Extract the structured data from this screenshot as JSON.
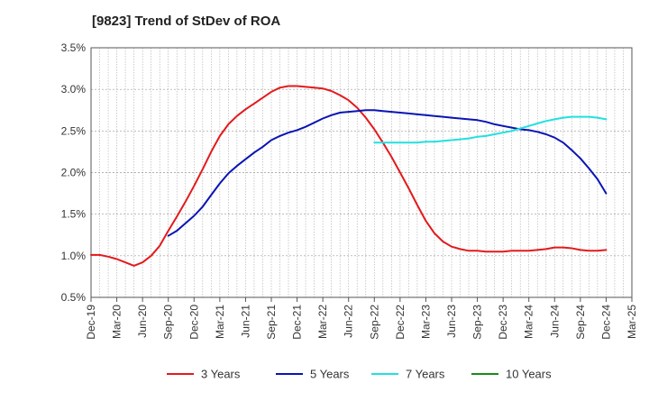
{
  "chart_data": {
    "type": "line",
    "title": "[9823]  Trend of StDev of ROA",
    "xlabel": "",
    "ylabel": "",
    "x_ticks": [
      "Dec-19",
      "Mar-20",
      "Jun-20",
      "Sep-20",
      "Dec-20",
      "Mar-21",
      "Jun-21",
      "Sep-21",
      "Dec-21",
      "Mar-22",
      "Jun-22",
      "Sep-22",
      "Dec-22",
      "Mar-23",
      "Jun-23",
      "Sep-23",
      "Dec-23",
      "Mar-24",
      "Jun-24",
      "Sep-24",
      "Dec-24",
      "Mar-25"
    ],
    "y_ticks": [
      "0.5%",
      "1.0%",
      "1.5%",
      "2.0%",
      "2.5%",
      "3.0%",
      "3.5%"
    ],
    "ylim": [
      0.5,
      3.5
    ],
    "grid": true,
    "legend_position": "bottom",
    "series": [
      {
        "name": "3 Years",
        "color": "#e31a1c",
        "points": [
          [
            "Dec-19",
            1.01
          ],
          [
            "Jan-20",
            1.01
          ],
          [
            "Feb-20",
            0.99
          ],
          [
            "Mar-20",
            0.96
          ],
          [
            "Apr-20",
            0.92
          ],
          [
            "May-20",
            0.88
          ],
          [
            "Jun-20",
            0.92
          ],
          [
            "Jul-20",
            1.0
          ],
          [
            "Aug-20",
            1.12
          ],
          [
            "Sep-20",
            1.3
          ],
          [
            "Oct-20",
            1.47
          ],
          [
            "Nov-20",
            1.65
          ],
          [
            "Dec-20",
            1.84
          ],
          [
            "Jan-21",
            2.04
          ],
          [
            "Feb-21",
            2.25
          ],
          [
            "Mar-21",
            2.44
          ],
          [
            "Apr-21",
            2.58
          ],
          [
            "May-21",
            2.68
          ],
          [
            "Jun-21",
            2.76
          ],
          [
            "Jul-21",
            2.83
          ],
          [
            "Aug-21",
            2.9
          ],
          [
            "Sep-21",
            2.97
          ],
          [
            "Oct-21",
            3.02
          ],
          [
            "Nov-21",
            3.04
          ],
          [
            "Dec-21",
            3.04
          ],
          [
            "Jan-22",
            3.03
          ],
          [
            "Feb-22",
            3.02
          ],
          [
            "Mar-22",
            3.01
          ],
          [
            "Apr-22",
            2.98
          ],
          [
            "May-22",
            2.93
          ],
          [
            "Jun-22",
            2.87
          ],
          [
            "Jul-22",
            2.78
          ],
          [
            "Aug-22",
            2.66
          ],
          [
            "Sep-22",
            2.52
          ],
          [
            "Oct-22",
            2.36
          ],
          [
            "Nov-22",
            2.19
          ],
          [
            "Dec-22",
            2.0
          ],
          [
            "Jan-23",
            1.81
          ],
          [
            "Feb-23",
            1.61
          ],
          [
            "Mar-23",
            1.42
          ],
          [
            "Apr-23",
            1.27
          ],
          [
            "May-23",
            1.17
          ],
          [
            "Jun-23",
            1.11
          ],
          [
            "Jul-23",
            1.08
          ],
          [
            "Aug-23",
            1.06
          ],
          [
            "Sep-23",
            1.06
          ],
          [
            "Oct-23",
            1.05
          ],
          [
            "Nov-23",
            1.05
          ],
          [
            "Dec-23",
            1.05
          ],
          [
            "Jan-24",
            1.06
          ],
          [
            "Feb-24",
            1.06
          ],
          [
            "Mar-24",
            1.06
          ],
          [
            "Apr-24",
            1.07
          ],
          [
            "May-24",
            1.08
          ],
          [
            "Jun-24",
            1.1
          ],
          [
            "Jul-24",
            1.1
          ],
          [
            "Aug-24",
            1.09
          ],
          [
            "Sep-24",
            1.07
          ],
          [
            "Oct-24",
            1.06
          ],
          [
            "Nov-24",
            1.06
          ],
          [
            "Dec-24",
            1.07
          ]
        ]
      },
      {
        "name": "5 Years",
        "color": "#0a14b4",
        "points": [
          [
            "Sep-20",
            1.24
          ],
          [
            "Oct-20",
            1.3
          ],
          [
            "Nov-20",
            1.39
          ],
          [
            "Dec-20",
            1.48
          ],
          [
            "Jan-21",
            1.59
          ],
          [
            "Feb-21",
            1.73
          ],
          [
            "Mar-21",
            1.87
          ],
          [
            "Apr-21",
            1.99
          ],
          [
            "May-21",
            2.08
          ],
          [
            "Jun-21",
            2.16
          ],
          [
            "Jul-21",
            2.24
          ],
          [
            "Aug-21",
            2.31
          ],
          [
            "Sep-21",
            2.39
          ],
          [
            "Oct-21",
            2.44
          ],
          [
            "Nov-21",
            2.48
          ],
          [
            "Dec-21",
            2.51
          ],
          [
            "Jan-22",
            2.55
          ],
          [
            "Feb-22",
            2.6
          ],
          [
            "Mar-22",
            2.65
          ],
          [
            "Apr-22",
            2.69
          ],
          [
            "May-22",
            2.72
          ],
          [
            "Jun-22",
            2.73
          ],
          [
            "Jul-22",
            2.74
          ],
          [
            "Aug-22",
            2.75
          ],
          [
            "Sep-22",
            2.75
          ],
          [
            "Oct-22",
            2.74
          ],
          [
            "Nov-22",
            2.73
          ],
          [
            "Dec-22",
            2.72
          ],
          [
            "Jan-23",
            2.71
          ],
          [
            "Feb-23",
            2.7
          ],
          [
            "Mar-23",
            2.69
          ],
          [
            "Apr-23",
            2.68
          ],
          [
            "May-23",
            2.67
          ],
          [
            "Jun-23",
            2.66
          ],
          [
            "Jul-23",
            2.65
          ],
          [
            "Aug-23",
            2.64
          ],
          [
            "Sep-23",
            2.63
          ],
          [
            "Oct-23",
            2.61
          ],
          [
            "Nov-23",
            2.58
          ],
          [
            "Dec-23",
            2.56
          ],
          [
            "Jan-24",
            2.54
          ],
          [
            "Feb-24",
            2.52
          ],
          [
            "Mar-24",
            2.51
          ],
          [
            "Apr-24",
            2.49
          ],
          [
            "May-24",
            2.46
          ],
          [
            "Jun-24",
            2.42
          ],
          [
            "Jul-24",
            2.36
          ],
          [
            "Aug-24",
            2.27
          ],
          [
            "Sep-24",
            2.17
          ],
          [
            "Oct-24",
            2.05
          ],
          [
            "Nov-24",
            1.92
          ],
          [
            "Dec-24",
            1.75
          ]
        ]
      },
      {
        "name": "7 Years",
        "color": "#22e0e0",
        "points": [
          [
            "Sep-22",
            2.36
          ],
          [
            "Oct-22",
            2.36
          ],
          [
            "Nov-22",
            2.36
          ],
          [
            "Dec-22",
            2.36
          ],
          [
            "Jan-23",
            2.36
          ],
          [
            "Feb-23",
            2.36
          ],
          [
            "Mar-23",
            2.37
          ],
          [
            "Apr-23",
            2.37
          ],
          [
            "May-23",
            2.38
          ],
          [
            "Jun-23",
            2.39
          ],
          [
            "Jul-23",
            2.4
          ],
          [
            "Aug-23",
            2.41
          ],
          [
            "Sep-23",
            2.43
          ],
          [
            "Oct-23",
            2.44
          ],
          [
            "Nov-23",
            2.46
          ],
          [
            "Dec-23",
            2.48
          ],
          [
            "Jan-24",
            2.5
          ],
          [
            "Feb-24",
            2.53
          ],
          [
            "Mar-24",
            2.56
          ],
          [
            "Apr-24",
            2.59
          ],
          [
            "May-24",
            2.62
          ],
          [
            "Jun-24",
            2.64
          ],
          [
            "Jul-24",
            2.66
          ],
          [
            "Aug-24",
            2.67
          ],
          [
            "Sep-24",
            2.67
          ],
          [
            "Oct-24",
            2.67
          ],
          [
            "Nov-24",
            2.66
          ],
          [
            "Dec-24",
            2.64
          ]
        ]
      },
      {
        "name": "10 Years",
        "color": "#1a8a1a",
        "points": []
      }
    ]
  }
}
